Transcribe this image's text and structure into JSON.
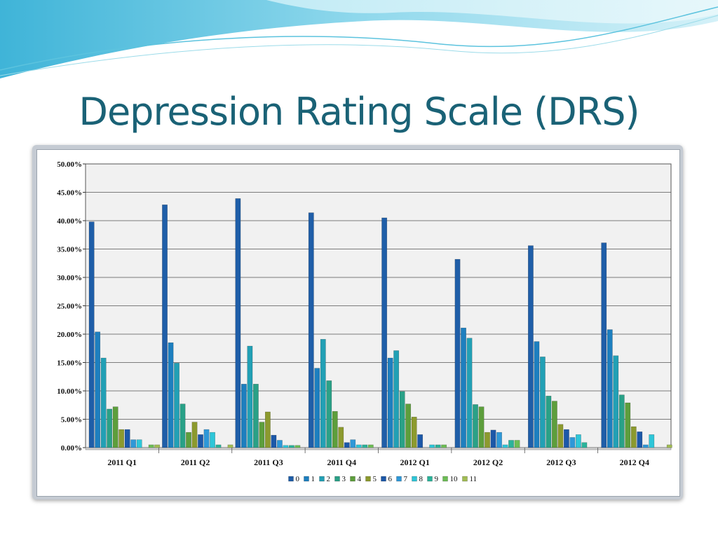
{
  "slide": {
    "title": "Depression Rating Scale (DRS)"
  },
  "chart_data": {
    "type": "bar",
    "title": "",
    "xlabel": "",
    "ylabel": "",
    "ylim": [
      0,
      50
    ],
    "yticks": [
      "0.00%",
      "5.00%",
      "10.00%",
      "15.00%",
      "20.00%",
      "25.00%",
      "30.00%",
      "35.00%",
      "40.00%",
      "45.00%",
      "50.00%"
    ],
    "grid": true,
    "legend_position": "bottom",
    "categories": [
      "2011 Q1",
      "2011 Q2",
      "2011 Q3",
      "2011 Q4",
      "2012 Q1",
      "2012 Q2",
      "2012 Q3",
      "2012 Q4"
    ],
    "series": [
      {
        "name": "0",
        "color": "#1f5ea8",
        "values": [
          39.8,
          42.8,
          43.9,
          41.4,
          40.5,
          33.2,
          35.6,
          36.1
        ]
      },
      {
        "name": "1",
        "color": "#1d7fbf",
        "values": [
          20.4,
          18.5,
          11.2,
          14.0,
          15.8,
          21.1,
          18.7,
          20.8
        ]
      },
      {
        "name": "2",
        "color": "#22a0b5",
        "values": [
          15.8,
          14.9,
          17.9,
          19.1,
          17.1,
          19.3,
          16.0,
          16.2
        ]
      },
      {
        "name": "3",
        "color": "#2aa187",
        "values": [
          6.8,
          7.7,
          11.2,
          11.8,
          9.9,
          7.6,
          9.1,
          9.3
        ]
      },
      {
        "name": "4",
        "color": "#5d9e3c",
        "values": [
          7.2,
          2.7,
          4.5,
          6.4,
          7.7,
          7.2,
          8.2,
          7.9
        ]
      },
      {
        "name": "5",
        "color": "#8c9a2e",
        "values": [
          3.2,
          4.5,
          6.3,
          3.6,
          5.4,
          2.7,
          4.1,
          3.7
        ]
      },
      {
        "name": "6",
        "color": "#1c58a8",
        "values": [
          3.2,
          2.3,
          2.2,
          0.9,
          2.3,
          3.1,
          3.2,
          2.8
        ]
      },
      {
        "name": "7",
        "color": "#2f98d8",
        "values": [
          1.4,
          3.2,
          1.3,
          1.4,
          0.0,
          2.7,
          1.8,
          0.5
        ]
      },
      {
        "name": "8",
        "color": "#2ec6d8",
        "values": [
          1.4,
          2.7,
          0.4,
          0.5,
          0.5,
          0.5,
          2.3,
          2.3
        ]
      },
      {
        "name": "9",
        "color": "#2bb39a",
        "values": [
          0.0,
          0.5,
          0.4,
          0.5,
          0.5,
          1.3,
          0.9,
          0.0
        ]
      },
      {
        "name": "10",
        "color": "#6dbd55",
        "values": [
          0.5,
          0.0,
          0.4,
          0.5,
          0.5,
          1.3,
          0.0,
          0.0
        ]
      },
      {
        "name": "11",
        "color": "#a2bd54",
        "values": [
          0.5,
          0.5,
          0.0,
          0.0,
          0.0,
          0.0,
          0.0,
          0.5
        ]
      }
    ]
  }
}
